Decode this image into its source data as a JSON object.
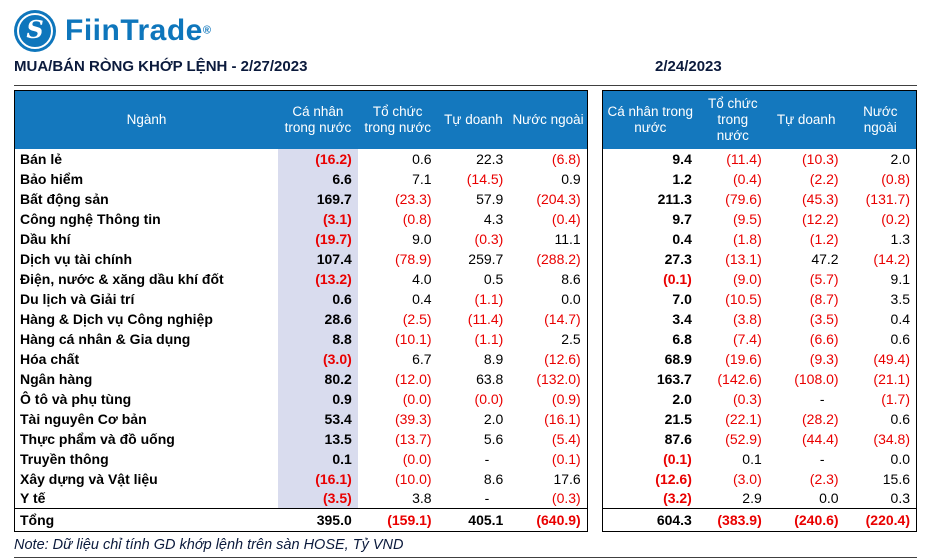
{
  "brand": {
    "name": "FiinTrade",
    "registered_mark": "®",
    "logo_letter": "S"
  },
  "colors": {
    "brand_blue": "#0e76bc",
    "header_blue": "#1478be",
    "highlight_lavender": "#d9dcee",
    "negative_red": "#e90000"
  },
  "header": {
    "title_left": "MUA/BÁN RÒNG KHỚP LỆNH - 2/27/2023",
    "title_right": "2/24/2023"
  },
  "columns": {
    "nganh": "Ngành",
    "groups": [
      "Cá nhân trong nước",
      "Tổ chức trong nước",
      "Tự doanh",
      "Nước ngoài"
    ]
  },
  "total_label": "Tổng",
  "rows": [
    {
      "nganh": "Bán lẻ",
      "d0227": [
        "(16.2)",
        "0.6",
        "22.3",
        "(6.8)"
      ],
      "d0224": [
        "9.4",
        "(11.4)",
        "(10.3)",
        "2.0"
      ]
    },
    {
      "nganh": "Bảo hiểm",
      "d0227": [
        "6.6",
        "7.1",
        "(14.5)",
        "0.9"
      ],
      "d0224": [
        "1.2",
        "(0.4)",
        "(2.2)",
        "(0.8)"
      ]
    },
    {
      "nganh": "Bất động sản",
      "d0227": [
        "169.7",
        "(23.3)",
        "57.9",
        "(204.3)"
      ],
      "d0224": [
        "211.3",
        "(79.6)",
        "(45.3)",
        "(131.7)"
      ]
    },
    {
      "nganh": "Công nghệ Thông tin",
      "d0227": [
        "(3.1)",
        "(0.8)",
        "4.3",
        "(0.4)"
      ],
      "d0224": [
        "9.7",
        "(9.5)",
        "(12.2)",
        "(0.2)"
      ]
    },
    {
      "nganh": "Dầu khí",
      "d0227": [
        "(19.7)",
        "9.0",
        "(0.3)",
        "11.1"
      ],
      "d0224": [
        "0.4",
        "(1.8)",
        "(1.2)",
        "1.3"
      ]
    },
    {
      "nganh": "Dịch vụ tài chính",
      "d0227": [
        "107.4",
        "(78.9)",
        "259.7",
        "(288.2)"
      ],
      "d0224": [
        "27.3",
        "(13.1)",
        "47.2",
        "(14.2)"
      ]
    },
    {
      "nganh": "Điện, nước & xăng dầu khí đốt",
      "d0227": [
        "(13.2)",
        "4.0",
        "0.5",
        "8.6"
      ],
      "d0224": [
        "(0.1)",
        "(9.0)",
        "(5.7)",
        "9.1"
      ]
    },
    {
      "nganh": "Du lịch và Giải trí",
      "d0227": [
        "0.6",
        "0.4",
        "(1.1)",
        "0.0"
      ],
      "d0224": [
        "7.0",
        "(10.5)",
        "(8.7)",
        "3.5"
      ]
    },
    {
      "nganh": "Hàng & Dịch vụ Công nghiệp",
      "d0227": [
        "28.6",
        "(2.5)",
        "(11.4)",
        "(14.7)"
      ],
      "d0224": [
        "3.4",
        "(3.8)",
        "(3.5)",
        "0.4"
      ]
    },
    {
      "nganh": "Hàng cá nhân & Gia dụng",
      "d0227": [
        "8.8",
        "(10.1)",
        "(1.1)",
        "2.5"
      ],
      "d0224": [
        "6.8",
        "(7.4)",
        "(6.6)",
        "0.6"
      ]
    },
    {
      "nganh": "Hóa chất",
      "d0227": [
        "(3.0)",
        "6.7",
        "8.9",
        "(12.6)"
      ],
      "d0224": [
        "68.9",
        "(19.6)",
        "(9.3)",
        "(49.4)"
      ]
    },
    {
      "nganh": "Ngân hàng",
      "d0227": [
        "80.2",
        "(12.0)",
        "63.8",
        "(132.0)"
      ],
      "d0224": [
        "163.7",
        "(142.6)",
        "(108.0)",
        "(21.1)"
      ]
    },
    {
      "nganh": "Ô tô và phụ tùng",
      "d0227": [
        "0.9",
        "(0.0)",
        "(0.0)",
        "(0.9)"
      ],
      "d0224": [
        "2.0",
        "(0.3)",
        "-",
        "(1.7)"
      ]
    },
    {
      "nganh": "Tài nguyên Cơ bản",
      "d0227": [
        "53.4",
        "(39.3)",
        "2.0",
        "(16.1)"
      ],
      "d0224": [
        "21.5",
        "(22.1)",
        "(28.2)",
        "0.6"
      ]
    },
    {
      "nganh": "Thực phẩm và đồ uống",
      "d0227": [
        "13.5",
        "(13.7)",
        "5.6",
        "(5.4)"
      ],
      "d0224": [
        "87.6",
        "(52.9)",
        "(44.4)",
        "(34.8)"
      ]
    },
    {
      "nganh": "Truyền thông",
      "d0227": [
        "0.1",
        "(0.0)",
        "-",
        "(0.1)"
      ],
      "d0224": [
        "(0.1)",
        "0.1",
        "-",
        "0.0"
      ]
    },
    {
      "nganh": "Xây dựng và Vật liệu",
      "d0227": [
        "(16.1)",
        "(10.0)",
        "8.6",
        "17.6"
      ],
      "d0224": [
        "(12.6)",
        "(3.0)",
        "(2.3)",
        "15.6"
      ]
    },
    {
      "nganh": "Y tế",
      "d0227": [
        "(3.5)",
        "3.8",
        "-",
        "(0.3)"
      ],
      "d0224": [
        "(3.2)",
        "2.9",
        "0.0",
        "0.3"
      ]
    }
  ],
  "totals": {
    "d0227": [
      "395.0",
      "(159.1)",
      "405.1",
      "(640.9)"
    ],
    "d0224": [
      "604.3",
      "(383.9)",
      "(240.6)",
      "(220.4)"
    ]
  },
  "note": "Note: Dữ liệu chỉ tính GD khớp lệnh trên sàn HOSE, Tỷ VND"
}
